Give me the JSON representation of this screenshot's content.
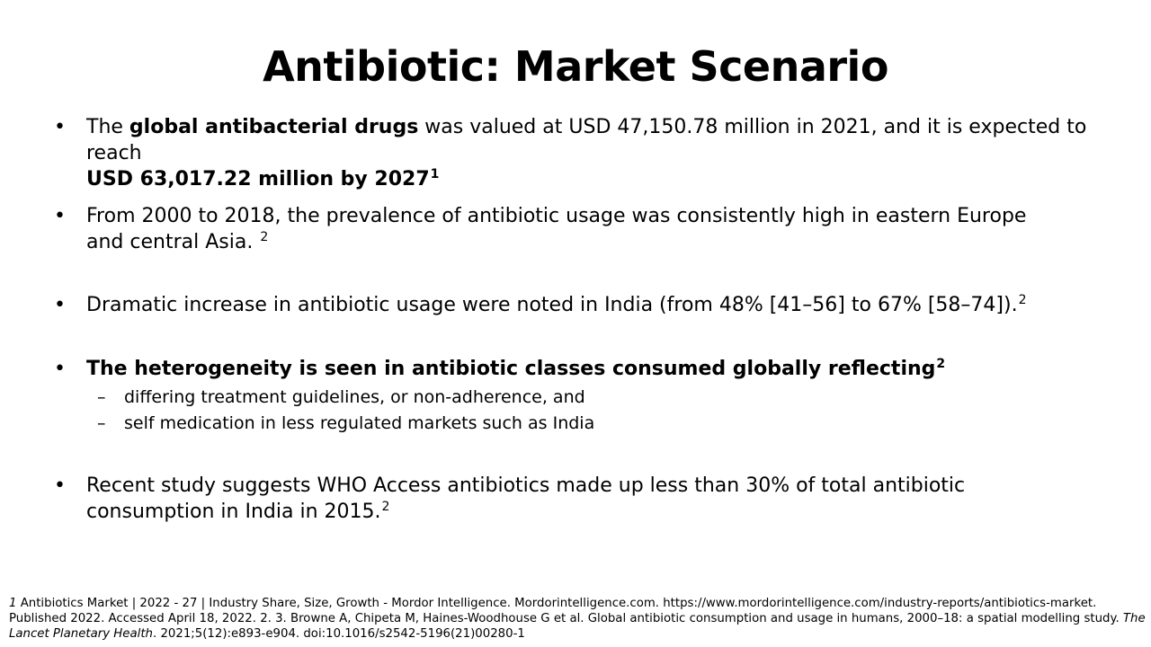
{
  "title": "Antibiotic: Market Scenario",
  "bullets": {
    "b1": {
      "pre": "The ",
      "bold1": "global antibacterial drugs",
      "mid": " was valued at USD 47,150.78 million in 2021, and it is expected to reach",
      "bold2": "USD 63,017.22 million by 2027",
      "ref": "1"
    },
    "b2": {
      "text": "From 2000 to 2018, the prevalence of antibiotic usage was consistently high in eastern Europe and central Asia.",
      "ref": "2"
    },
    "b3": {
      "text": "Dramatic increase in antibiotic usage were noted in India (from 48% [41–56] to 67% [58–74]).",
      "ref": "2"
    },
    "b4": {
      "text": "The heterogeneity is seen in antibiotic classes consumed globally reflecting",
      "ref": "2",
      "sub": [
        "differing treatment guidelines, or non-adherence, and",
        "self medication in less regulated markets such as India"
      ]
    },
    "b5": {
      "text": "Recent study suggests WHO Access antibiotics made up less than 30% of total antibiotic consumption in India in 2015.",
      "ref": "2"
    }
  },
  "bullet_symbol": "•",
  "sub_symbol": "–",
  "footer": {
    "ref1_num": "1",
    "ref1_text": " Antibiotics Market | 2022 - 27 | Industry Share, Size, Growth - Mordor Intelligence. Mordorintelligence.com. https://www.mordorintelligence.com/industry-reports/antibiotics-market. Published 2022. Accessed April 18, 2022. 2. 3. Browne A, Chipeta M, Haines-Woodhouse G et al. Global antibiotic consumption and usage in humans, 2000–18: a spatial modelling study. ",
    "journal": "The Lancet Planetary Health",
    "ref2_tail": ". 2021;5(12):e893-e904. doi:10.1016/s2542-5196(21)00280-1"
  }
}
